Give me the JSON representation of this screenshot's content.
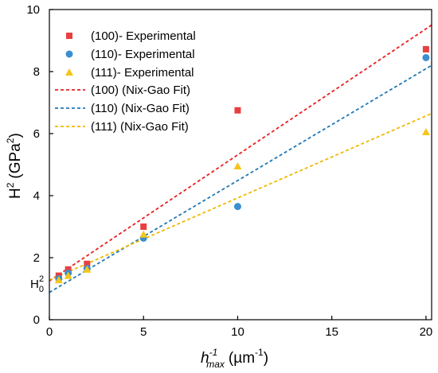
{
  "chart_data": {
    "type": "scatter",
    "title": "",
    "xlabel": {
      "base": "h",
      "sup": "-1",
      "sub": "max",
      "unit": "(µm",
      "unit_sup": "-1",
      "close": ")"
    },
    "ylabel": {
      "base": "H",
      "sup": "2",
      "unit": "(GPa",
      "unit_sup": "2",
      "close": ")"
    },
    "xlim": [
      0,
      20.3
    ],
    "ylim": [
      0,
      10
    ],
    "xticks": [
      0,
      5,
      10,
      15,
      20
    ],
    "yticks": [
      0,
      2,
      4,
      6,
      8,
      10
    ],
    "grid": false,
    "legend_position": "top-left",
    "h0_label": {
      "base": "H",
      "sup": "2",
      "sub": "0"
    },
    "series": [
      {
        "name": "(100)- Experimental",
        "marker": "square",
        "color": "#e84040",
        "x": [
          0.5,
          1,
          2,
          5,
          10,
          20
        ],
        "y": [
          1.42,
          1.62,
          1.8,
          3.0,
          6.75,
          8.72
        ]
      },
      {
        "name": "(110)- Experimental",
        "marker": "circle",
        "color": "#3a8fd0",
        "x": [
          0.5,
          1,
          2,
          5,
          10,
          20
        ],
        "y": [
          1.32,
          1.5,
          1.65,
          2.63,
          3.65,
          8.45
        ]
      },
      {
        "name": "(111)- Experimental",
        "marker": "triangle",
        "color": "#f5c518",
        "x": [
          0.5,
          1,
          2,
          5,
          10,
          20
        ],
        "y": [
          1.28,
          1.42,
          1.62,
          2.75,
          4.95,
          6.05
        ]
      }
    ],
    "fits": [
      {
        "name": "(100) (Nix-Gao Fit)",
        "color": "#e82020",
        "x": [
          0,
          20.3
        ],
        "y": [
          1.25,
          9.5
        ]
      },
      {
        "name": "(110) (Nix-Gao Fit)",
        "color": "#1f78b4",
        "x": [
          0,
          20.3
        ],
        "y": [
          0.88,
          8.2
        ]
      },
      {
        "name": "(111) (Nix-Gao Fit)",
        "color": "#f0b800",
        "x": [
          0,
          20.3
        ],
        "y": [
          1.28,
          6.65
        ]
      }
    ]
  }
}
